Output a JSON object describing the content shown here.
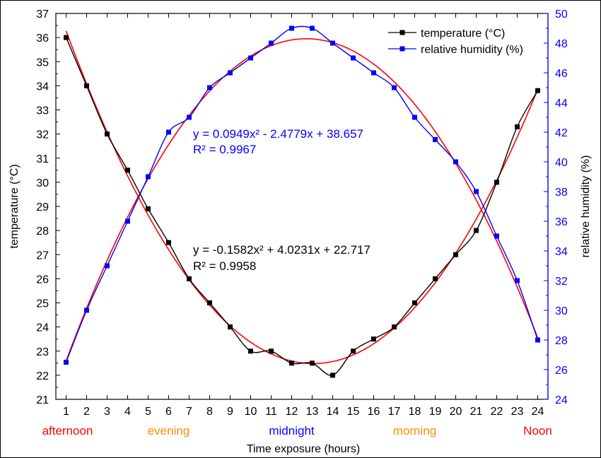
{
  "chart_data": {
    "type": "line",
    "xlabel": "Time exposure (hours)",
    "ylabel_left": "temperature (°C)",
    "ylabel_right": "relative humidity (%)",
    "x": [
      1,
      2,
      3,
      4,
      5,
      6,
      7,
      8,
      9,
      10,
      11,
      12,
      13,
      14,
      15,
      16,
      17,
      18,
      19,
      20,
      21,
      22,
      23,
      24
    ],
    "x_ticks": [
      1,
      2,
      3,
      4,
      5,
      6,
      7,
      8,
      9,
      10,
      11,
      12,
      13,
      14,
      15,
      16,
      17,
      18,
      19,
      20,
      21,
      22,
      23,
      24
    ],
    "xlim": [
      0.5,
      24.5
    ],
    "ylim_left": [
      21,
      37
    ],
    "ylim_right": [
      24,
      50
    ],
    "y_ticks_left": [
      21,
      22,
      23,
      24,
      25,
      26,
      27,
      28,
      29,
      30,
      31,
      32,
      33,
      34,
      35,
      36,
      37
    ],
    "y_ticks_right": [
      24,
      26,
      28,
      30,
      32,
      34,
      36,
      38,
      40,
      42,
      44,
      46,
      48,
      50
    ],
    "series": [
      {
        "name": "temperature (°C)",
        "axis": "left",
        "color": "#000000",
        "marker": "square",
        "values": [
          36.0,
          34.0,
          32.0,
          30.5,
          28.9,
          27.5,
          26.0,
          25.0,
          24.0,
          23.0,
          23.0,
          22.5,
          22.5,
          22.0,
          23.0,
          23.5,
          24.0,
          25.0,
          26.0,
          27.0,
          28.0,
          30.0,
          32.3,
          33.8
        ]
      },
      {
        "name": "relative humidity (%)",
        "axis": "right",
        "color": "#0000ff",
        "marker": "square",
        "values": [
          26.5,
          30.0,
          33.0,
          36.0,
          39.0,
          42.0,
          43.0,
          45.0,
          46.0,
          47.0,
          48.0,
          49.0,
          49.0,
          48.0,
          47.0,
          46.0,
          45.0,
          43.0,
          41.5,
          40.0,
          38.0,
          35.0,
          32.0,
          28.0
        ]
      }
    ],
    "fits": [
      {
        "name": "temperature fit",
        "axis": "left",
        "color": "#ff0000",
        "a": 0.0949,
        "b": -2.4779,
        "c": 38.657,
        "equation": "y = 0.0949x² - 2.4779x + 38.657",
        "r2": "R² = 0.9967",
        "label_color": "#0000ff"
      },
      {
        "name": "relative humidity fit",
        "axis": "right",
        "color": "#ff0000",
        "a": -0.1582,
        "b": 4.0231,
        "c": 22.717,
        "equation": "y = -0.1582x² + 4.0231x + 22.717",
        "r2": "R² = 0.9958",
        "label_color": "#000000"
      }
    ],
    "legend": {
      "placement": "top-right",
      "entries": [
        "temperature (°C)",
        "relative humidity (%)"
      ]
    },
    "period_labels": [
      {
        "text": "afternoon",
        "x": 1.5,
        "color": "#ff0000"
      },
      {
        "text": "evening",
        "x": 6,
        "color": "#ff8c00"
      },
      {
        "text": "midnight",
        "x": 12,
        "color": "#0000ff"
      },
      {
        "text": "morning",
        "x": 18,
        "color": "#ff8c00"
      },
      {
        "text": "Noon",
        "x": 24,
        "color": "#ff0000"
      }
    ],
    "grid": false
  }
}
